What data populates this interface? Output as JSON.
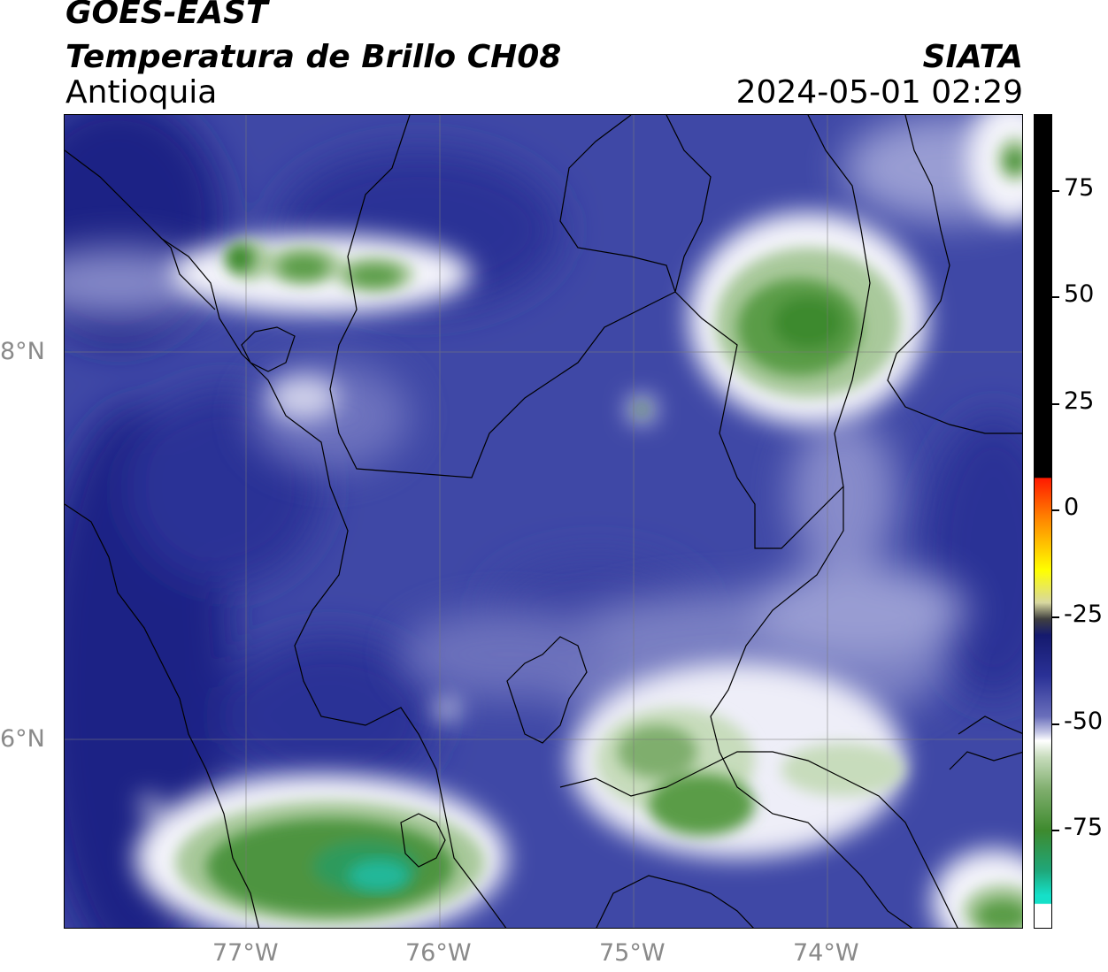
{
  "header": {
    "title_line1": "GOES-EAST",
    "title_line2": "Temperatura de Brillo CH08",
    "agency": "SIATA",
    "region": "Antioquia",
    "datetime": "2024-05-01 02:29"
  },
  "axes": {
    "latitude_labels": [
      "8°N",
      "6°N"
    ],
    "longitude_labels": [
      "77°W",
      "76°W",
      "75°W",
      "74°W"
    ],
    "gridlines": true
  },
  "colorbar": {
    "tick_labels": [
      "75",
      "50",
      "25",
      "0",
      "-25",
      "-50",
      "-75"
    ],
    "tick_values": [
      75,
      50,
      25,
      0,
      -25,
      -50,
      -75
    ],
    "range": [
      -90,
      90
    ],
    "colors": {
      "warm_black": "#000000",
      "red": "#ff1a00",
      "orange": "#ff8c00",
      "yellow": "#ffff00",
      "dark_navy": "#151a6e",
      "blue": "#3a43a8",
      "lavender": "#8b8fcc",
      "white": "#ffffff",
      "light_green": "#a9c99b",
      "green": "#3e8a2e",
      "teal": "#15e0c8"
    }
  }
}
